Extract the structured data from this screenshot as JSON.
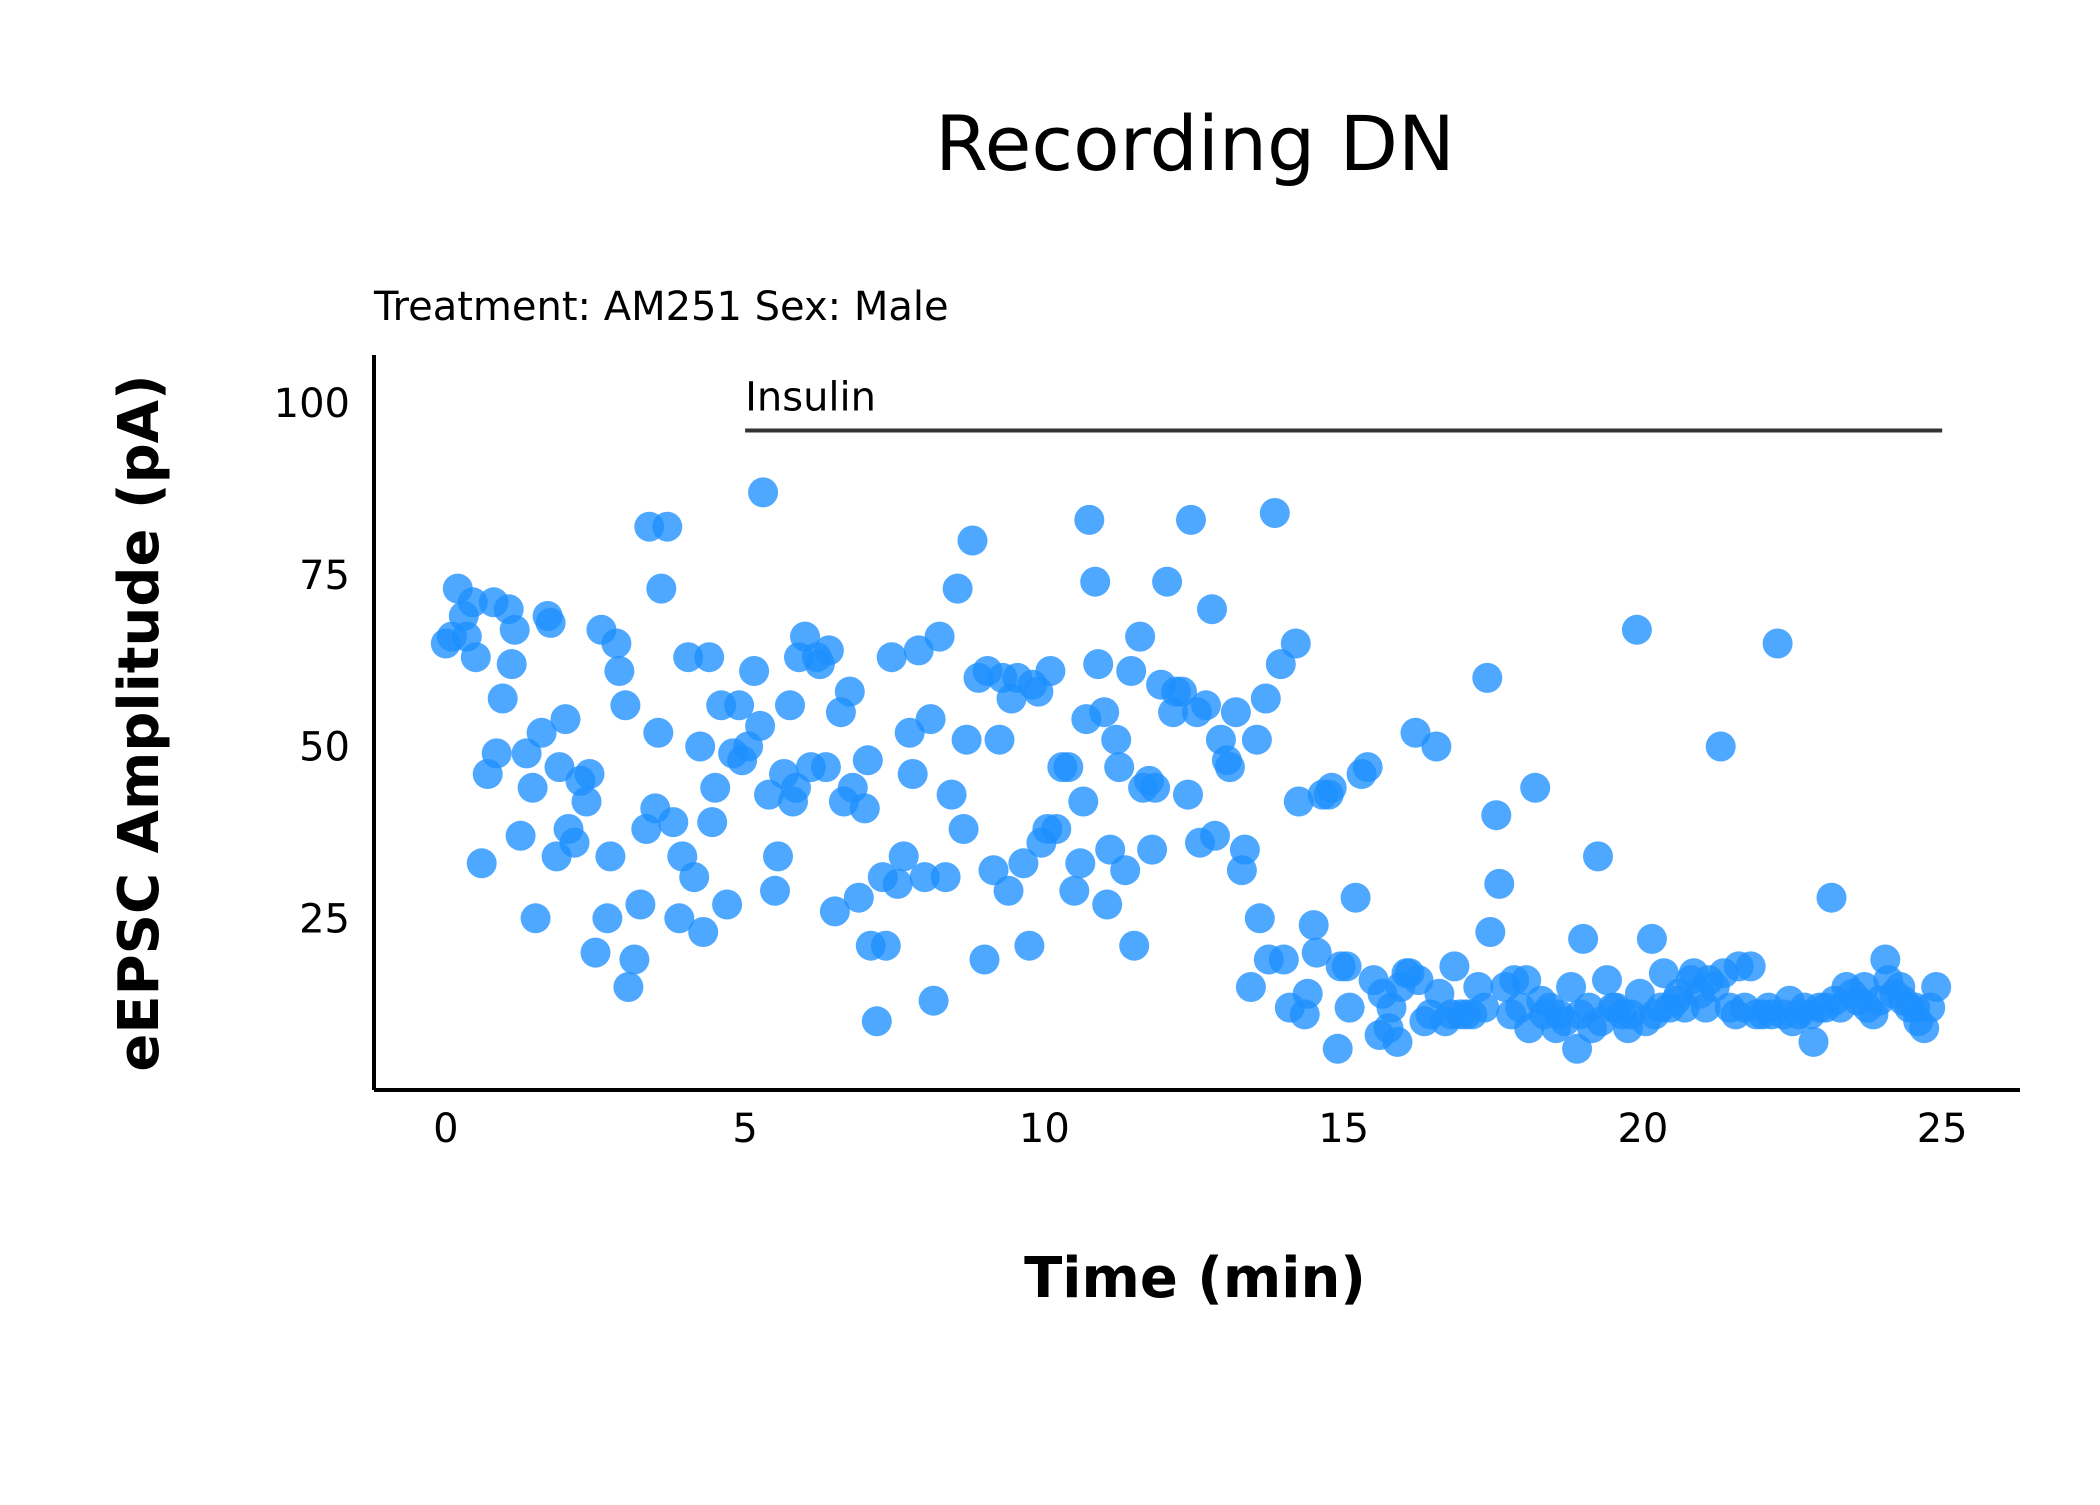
{
  "chart_data": {
    "type": "scatter",
    "title": "Recording DN",
    "subtitle": "Treatment: AM251  Sex: Male",
    "xlabel": "Time (min)",
    "ylabel": "eEPSC Amplitude (pA)",
    "xlim": [
      -1.2,
      26.3
    ],
    "ylim": [
      0,
      107
    ],
    "xticks": [
      0,
      5,
      10,
      15,
      20,
      25
    ],
    "yticks": [
      25,
      50,
      75,
      100
    ],
    "grid": false,
    "legend": "none",
    "point_color": "#1e90ff",
    "annotation": {
      "label": "Insulin",
      "x_start": 5,
      "x_end": 25,
      "y": 96
    },
    "points": [
      [
        0,
        65
      ],
      [
        0.1,
        66
      ],
      [
        0.2,
        73
      ],
      [
        0.3,
        69
      ],
      [
        0.35,
        66
      ],
      [
        0.45,
        71
      ],
      [
        0.5,
        63
      ],
      [
        0.6,
        33
      ],
      [
        0.7,
        46
      ],
      [
        0.8,
        71
      ],
      [
        0.85,
        49
      ],
      [
        0.95,
        57
      ],
      [
        1.05,
        70
      ],
      [
        1.1,
        62
      ],
      [
        1.15,
        67
      ],
      [
        1.25,
        37
      ],
      [
        1.35,
        49
      ],
      [
        1.45,
        44
      ],
      [
        1.5,
        25
      ],
      [
        1.6,
        52
      ],
      [
        1.7,
        69
      ],
      [
        1.75,
        68
      ],
      [
        1.85,
        34
      ],
      [
        1.9,
        47
      ],
      [
        2.0,
        54
      ],
      [
        2.05,
        38
      ],
      [
        2.15,
        36
      ],
      [
        2.25,
        45
      ],
      [
        2.35,
        42
      ],
      [
        2.4,
        46
      ],
      [
        2.5,
        20
      ],
      [
        2.6,
        67
      ],
      [
        2.7,
        25
      ],
      [
        2.75,
        34
      ],
      [
        2.85,
        65
      ],
      [
        2.9,
        61
      ],
      [
        3.0,
        56
      ],
      [
        3.05,
        15
      ],
      [
        3.15,
        19
      ],
      [
        3.25,
        27
      ],
      [
        3.35,
        38
      ],
      [
        3.4,
        82
      ],
      [
        3.5,
        41
      ],
      [
        3.55,
        52
      ],
      [
        3.6,
        73
      ],
      [
        3.7,
        82
      ],
      [
        3.8,
        39
      ],
      [
        3.9,
        25
      ],
      [
        3.95,
        34
      ],
      [
        4.05,
        63
      ],
      [
        4.15,
        31
      ],
      [
        4.25,
        50
      ],
      [
        4.3,
        23
      ],
      [
        4.4,
        63
      ],
      [
        4.45,
        39
      ],
      [
        4.5,
        44
      ],
      [
        4.6,
        56
      ],
      [
        4.7,
        27
      ],
      [
        4.8,
        49
      ],
      [
        4.9,
        56
      ],
      [
        4.95,
        48
      ],
      [
        5.05,
        50
      ],
      [
        5.15,
        61
      ],
      [
        5.25,
        53
      ],
      [
        5.3,
        87
      ],
      [
        5.4,
        43
      ],
      [
        5.5,
        29
      ],
      [
        5.55,
        34
      ],
      [
        5.65,
        46
      ],
      [
        5.75,
        56
      ],
      [
        5.8,
        42
      ],
      [
        5.85,
        44
      ],
      [
        5.9,
        63
      ],
      [
        6.0,
        66
      ],
      [
        6.1,
        47
      ],
      [
        6.2,
        63
      ],
      [
        6.25,
        62
      ],
      [
        6.35,
        47
      ],
      [
        6.4,
        64
      ],
      [
        6.5,
        26
      ],
      [
        6.6,
        55
      ],
      [
        6.65,
        42
      ],
      [
        6.75,
        58
      ],
      [
        6.8,
        44
      ],
      [
        6.9,
        28
      ],
      [
        7.0,
        41
      ],
      [
        7.05,
        48
      ],
      [
        7.1,
        21
      ],
      [
        7.2,
        10
      ],
      [
        7.3,
        31
      ],
      [
        7.35,
        21
      ],
      [
        7.45,
        63
      ],
      [
        7.55,
        30
      ],
      [
        7.65,
        34
      ],
      [
        7.75,
        52
      ],
      [
        7.8,
        46
      ],
      [
        7.9,
        64
      ],
      [
        8.0,
        31
      ],
      [
        8.1,
        54
      ],
      [
        8.15,
        13
      ],
      [
        8.25,
        66
      ],
      [
        8.35,
        31
      ],
      [
        8.45,
        43
      ],
      [
        8.55,
        73
      ],
      [
        8.65,
        38
      ],
      [
        8.7,
        51
      ],
      [
        8.8,
        80
      ],
      [
        8.9,
        60
      ],
      [
        9.0,
        19
      ],
      [
        9.05,
        61
      ],
      [
        9.15,
        32
      ],
      [
        9.25,
        51
      ],
      [
        9.3,
        60
      ],
      [
        9.4,
        29
      ],
      [
        9.45,
        57
      ],
      [
        9.55,
        60
      ],
      [
        9.65,
        33
      ],
      [
        9.75,
        21
      ],
      [
        9.8,
        59
      ],
      [
        9.9,
        58
      ],
      [
        9.95,
        36
      ],
      [
        10.05,
        38
      ],
      [
        10.1,
        61
      ],
      [
        10.2,
        38
      ],
      [
        10.3,
        47
      ],
      [
        10.4,
        47
      ],
      [
        10.5,
        29
      ],
      [
        10.6,
        33
      ],
      [
        10.65,
        42
      ],
      [
        10.7,
        54
      ],
      [
        10.75,
        83
      ],
      [
        10.85,
        74
      ],
      [
        10.9,
        62
      ],
      [
        11.0,
        55
      ],
      [
        11.05,
        27
      ],
      [
        11.1,
        35
      ],
      [
        11.2,
        51
      ],
      [
        11.25,
        47
      ],
      [
        11.35,
        32
      ],
      [
        11.45,
        61
      ],
      [
        11.5,
        21
      ],
      [
        11.6,
        66
      ],
      [
        11.65,
        44
      ],
      [
        11.75,
        45
      ],
      [
        11.8,
        35
      ],
      [
        11.85,
        44
      ],
      [
        11.95,
        59
      ],
      [
        12.05,
        74
      ],
      [
        12.15,
        55
      ],
      [
        12.2,
        58
      ],
      [
        12.3,
        58
      ],
      [
        12.4,
        43
      ],
      [
        12.45,
        83
      ],
      [
        12.55,
        55
      ],
      [
        12.6,
        36
      ],
      [
        12.7,
        56
      ],
      [
        12.8,
        70
      ],
      [
        12.85,
        37
      ],
      [
        12.95,
        51
      ],
      [
        13.05,
        48
      ],
      [
        13.1,
        47
      ],
      [
        13.2,
        55
      ],
      [
        13.3,
        32
      ],
      [
        13.35,
        35
      ],
      [
        13.45,
        15
      ],
      [
        13.55,
        51
      ],
      [
        13.6,
        25
      ],
      [
        13.7,
        57
      ],
      [
        13.75,
        19
      ],
      [
        13.85,
        84
      ],
      [
        13.95,
        62
      ],
      [
        14.0,
        19
      ],
      [
        14.1,
        12
      ],
      [
        14.2,
        65
      ],
      [
        14.25,
        42
      ],
      [
        14.35,
        11
      ],
      [
        14.4,
        14
      ],
      [
        14.5,
        24
      ],
      [
        14.55,
        20
      ],
      [
        14.65,
        43
      ],
      [
        14.75,
        43
      ],
      [
        14.8,
        44
      ],
      [
        14.9,
        6
      ],
      [
        14.95,
        18
      ],
      [
        15.05,
        18
      ],
      [
        15.1,
        12
      ],
      [
        15.2,
        28
      ],
      [
        15.3,
        46
      ],
      [
        15.4,
        47
      ],
      [
        15.5,
        16
      ],
      [
        15.6,
        8
      ],
      [
        15.65,
        14
      ],
      [
        15.75,
        9
      ],
      [
        15.8,
        12
      ],
      [
        15.9,
        7
      ],
      [
        15.95,
        15
      ],
      [
        16.05,
        17
      ],
      [
        16.1,
        17
      ],
      [
        16.2,
        52
      ],
      [
        16.25,
        16
      ],
      [
        16.35,
        10
      ],
      [
        16.45,
        11
      ],
      [
        16.55,
        50
      ],
      [
        16.6,
        14
      ],
      [
        16.7,
        10
      ],
      [
        16.8,
        11
      ],
      [
        16.85,
        18
      ],
      [
        16.95,
        11
      ],
      [
        17.05,
        11
      ],
      [
        17.15,
        11
      ],
      [
        17.25,
        15
      ],
      [
        17.35,
        12
      ],
      [
        17.4,
        60
      ],
      [
        17.45,
        23
      ],
      [
        17.55,
        40
      ],
      [
        17.6,
        30
      ],
      [
        17.7,
        15
      ],
      [
        17.8,
        11
      ],
      [
        17.85,
        16
      ],
      [
        17.95,
        12
      ],
      [
        18.05,
        16
      ],
      [
        18.1,
        9
      ],
      [
        18.2,
        44
      ],
      [
        18.3,
        13
      ],
      [
        18.35,
        11
      ],
      [
        18.45,
        12
      ],
      [
        18.55,
        9
      ],
      [
        18.6,
        11
      ],
      [
        18.7,
        10
      ],
      [
        18.8,
        15
      ],
      [
        18.9,
        6
      ],
      [
        18.95,
        11
      ],
      [
        19.0,
        22
      ],
      [
        19.1,
        12
      ],
      [
        19.15,
        9
      ],
      [
        19.25,
        34
      ],
      [
        19.3,
        10
      ],
      [
        19.4,
        16
      ],
      [
        19.5,
        12
      ],
      [
        19.55,
        12
      ],
      [
        19.65,
        11
      ],
      [
        19.75,
        9
      ],
      [
        19.8,
        11
      ],
      [
        19.9,
        67
      ],
      [
        19.95,
        14
      ],
      [
        20.05,
        10
      ],
      [
        20.15,
        22
      ],
      [
        20.2,
        11
      ],
      [
        20.3,
        12
      ],
      [
        20.35,
        17
      ],
      [
        20.45,
        12
      ],
      [
        20.55,
        13
      ],
      [
        20.6,
        14
      ],
      [
        20.7,
        12
      ],
      [
        20.8,
        16
      ],
      [
        20.85,
        17
      ],
      [
        20.95,
        14
      ],
      [
        21.05,
        12
      ],
      [
        21.1,
        16
      ],
      [
        21.2,
        15
      ],
      [
        21.3,
        50
      ],
      [
        21.35,
        17
      ],
      [
        21.45,
        12
      ],
      [
        21.55,
        11
      ],
      [
        21.6,
        18
      ],
      [
        21.7,
        12
      ],
      [
        21.8,
        18
      ],
      [
        21.9,
        11
      ],
      [
        22.0,
        11
      ],
      [
        22.1,
        12
      ],
      [
        22.15,
        11
      ],
      [
        22.25,
        65
      ],
      [
        22.35,
        11
      ],
      [
        22.45,
        13
      ],
      [
        22.5,
        10
      ],
      [
        22.6,
        11
      ],
      [
        22.7,
        12
      ],
      [
        22.8,
        11
      ],
      [
        22.85,
        7
      ],
      [
        22.95,
        12
      ],
      [
        23.05,
        12
      ],
      [
        23.15,
        28
      ],
      [
        23.2,
        13
      ],
      [
        23.3,
        12
      ],
      [
        23.4,
        15
      ],
      [
        23.5,
        14
      ],
      [
        23.6,
        13
      ],
      [
        23.7,
        15
      ],
      [
        23.75,
        12
      ],
      [
        23.85,
        11
      ],
      [
        23.95,
        13
      ],
      [
        24.05,
        19
      ],
      [
        24.1,
        16
      ],
      [
        24.2,
        14
      ],
      [
        24.3,
        15
      ],
      [
        24.35,
        13
      ],
      [
        24.45,
        12
      ],
      [
        24.55,
        12
      ],
      [
        24.6,
        10
      ],
      [
        24.7,
        9
      ],
      [
        24.8,
        12
      ],
      [
        24.9,
        15
      ]
    ]
  }
}
